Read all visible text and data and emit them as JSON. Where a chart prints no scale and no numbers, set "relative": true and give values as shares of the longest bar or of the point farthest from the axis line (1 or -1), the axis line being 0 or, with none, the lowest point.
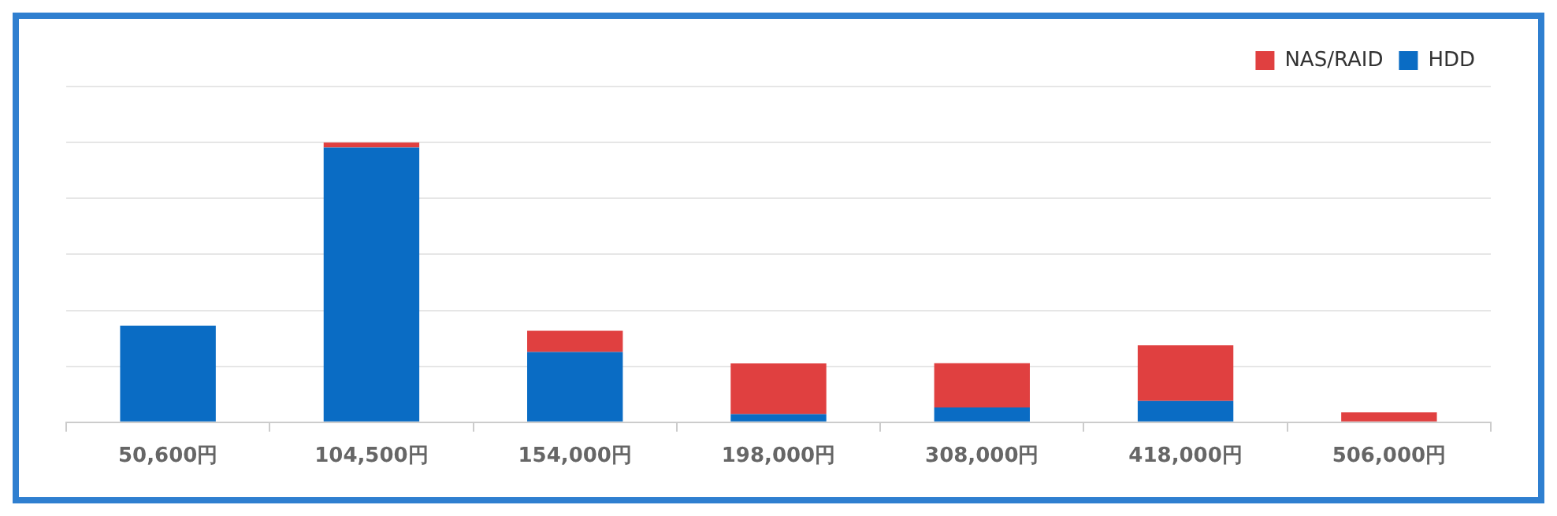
{
  "chart_data": {
    "type": "bar",
    "relative": true,
    "stacked": true,
    "grid": "y",
    "legend": "top right",
    "categories": [
      "50,600円",
      "104,500円",
      "154,000円",
      "198,000円",
      "308,000円",
      "418,000円",
      "506,000円"
    ],
    "series": [
      {
        "name": "HDD",
        "color": "#0a6cc4",
        "values": [
          0.345,
          0.982,
          0.251,
          0.029,
          0.053,
          0.076,
          0
        ]
      },
      {
        "name": "NAS/RAID",
        "color": "#e04040",
        "values": [
          0,
          0.018,
          0.076,
          0.181,
          0.158,
          0.199,
          0.035
        ]
      }
    ]
  }
}
